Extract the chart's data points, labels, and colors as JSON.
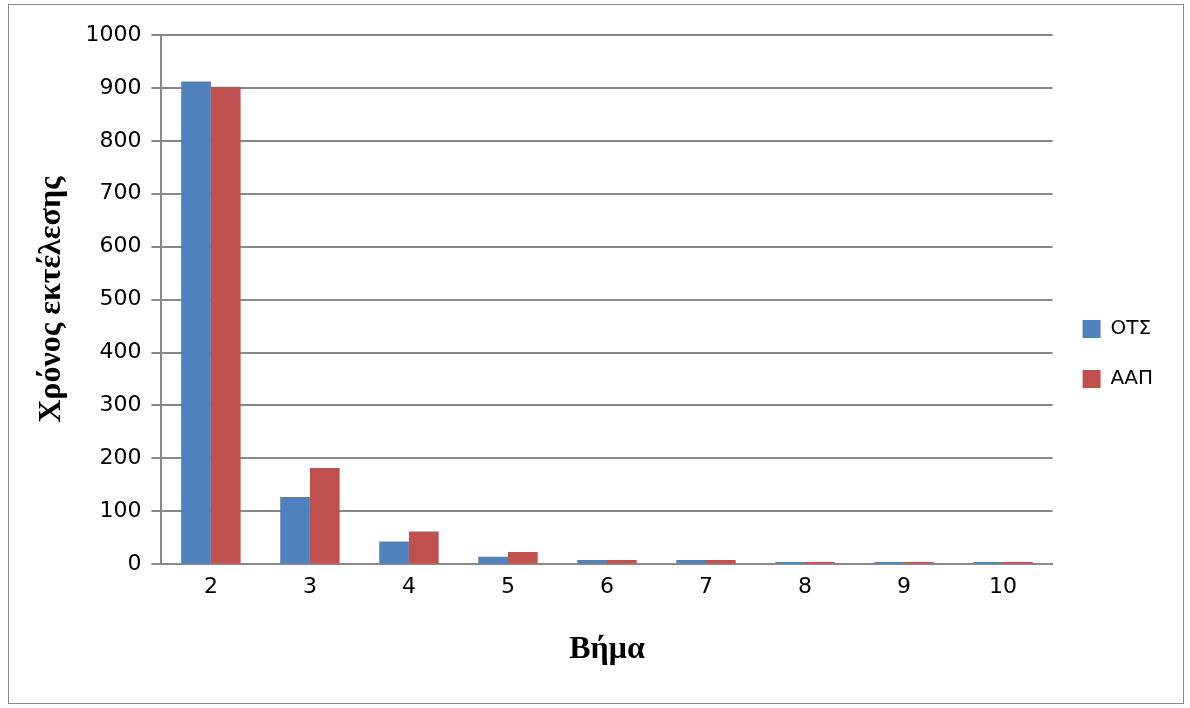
{
  "chart_data": {
    "type": "bar",
    "xlabel": "Βήμα",
    "ylabel": "Χρόνος εκτέλεσης",
    "categories": [
      "2",
      "3",
      "4",
      "5",
      "6",
      "7",
      "8",
      "9",
      "10"
    ],
    "series": [
      {
        "name": "ΟΤΣ",
        "color": "#4f81bd",
        "values": [
          912,
          127,
          43,
          14,
          8,
          8,
          4,
          4,
          4
        ]
      },
      {
        "name": "ΑΑΠ",
        "color": "#c0504d",
        "values": [
          902,
          182,
          62,
          23,
          8,
          8,
          4,
          4,
          4
        ]
      }
    ],
    "ylim": [
      0,
      1000
    ],
    "yticks": [
      0,
      100,
      200,
      300,
      400,
      500,
      600,
      700,
      800,
      900,
      1000
    ],
    "grid": "y",
    "legend": "right"
  }
}
